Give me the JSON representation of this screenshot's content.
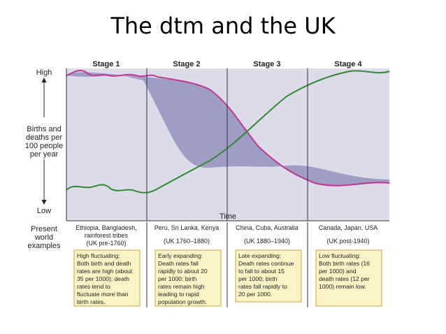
{
  "title": "The dtm and the UK",
  "axis": {
    "y_high": "High",
    "y_low": "Low",
    "y_label": [
      "Births and",
      "deaths per",
      "100 people",
      "per year"
    ],
    "x_label": "Time"
  },
  "row_label": [
    "Present",
    "world",
    "examples"
  ],
  "stages": [
    {
      "label": "Stage 1",
      "examples": [
        "Ethiopia, Bangladesh,",
        "rainforest tribes"
      ],
      "uk": "(UK pre-1760)",
      "description": [
        "High fluctuating:",
        "Both birth and death",
        "rates are high (about",
        "35 per 1000); death",
        "rates tend to",
        "fluctuate more than",
        "birth rates."
      ]
    },
    {
      "label": "Stage 2",
      "examples": [
        "Peru, Sri Lanka, Kenya"
      ],
      "uk": "(UK 1760–1880)",
      "description": [
        "Early expanding:",
        "Death rates fall",
        "rapidly to about 20",
        "per 1000; birth",
        "rates remain high",
        "leading to rapid",
        "population growth."
      ]
    },
    {
      "label": "Stage 3",
      "examples": [
        "China, Cuba, Australia"
      ],
      "uk": "(UK 1880–1940)",
      "description": [
        "Late expanding:",
        "Death rates continue",
        "to fall to about 15",
        "per 1000; birth",
        "rates fall rapidly to",
        "20 per 1000."
      ]
    },
    {
      "label": "Stage 4",
      "examples": [
        "Canada, Japan, USA"
      ],
      "uk": "(UK post-1940)",
      "description": [
        "Low fluctuating:",
        "Both birth rates (16",
        "per 1000) and",
        "death rates (12 per",
        "1000) remain low."
      ]
    }
  ],
  "colors": {
    "birth_rate_line": "#c2368f",
    "death_rate_line": "#2e8b2e",
    "growth_fill": "#9896c1",
    "background_fill": "#dcdbea",
    "box_fill": "#fbf3c6",
    "box_border": "#c9a53b"
  }
}
